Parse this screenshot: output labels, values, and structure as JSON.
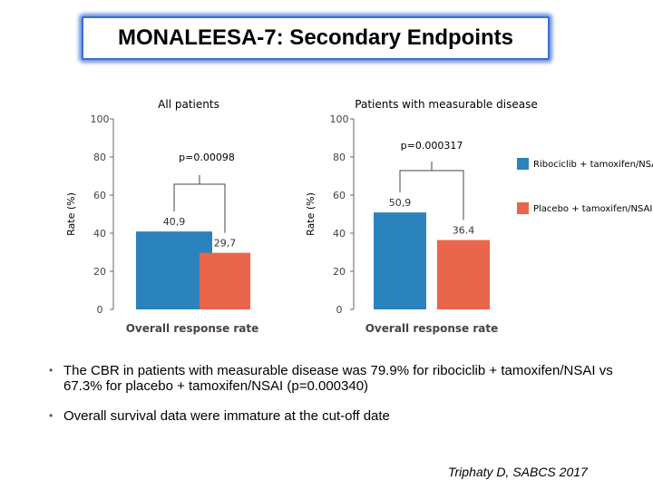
{
  "title": "MONALEESA-7: Secondary Endpoints",
  "chart_data": {
    "type": "bar",
    "yaxis_label": "Rate (%)",
    "ylim": [
      0,
      100
    ],
    "yticks": [
      0,
      20,
      40,
      60,
      80,
      100
    ],
    "grid": false,
    "legend_position": "right",
    "series_colors": [
      "#2b83bd",
      "#e9654b"
    ],
    "legend": [
      {
        "label": "Ribociclib + tamoxifen/NSAI",
        "color": "#2b83bd"
      },
      {
        "label": "Placebo + tamoxifen/NSAI",
        "color": "#e9654b"
      }
    ],
    "panels": [
      {
        "title": "All patients",
        "xlabel": "Overall response rate",
        "p_value": "p=0.00098",
        "values": [
          40.9,
          29.7
        ],
        "value_labels": [
          "40,9",
          "29,7"
        ]
      },
      {
        "title": "Patients with measurable disease",
        "xlabel": "Overall response rate",
        "p_value": "p=0.000317",
        "values": [
          50.9,
          36.4
        ],
        "value_labels": [
          "50,9",
          "36.4"
        ]
      }
    ]
  },
  "bullets": [
    "The CBR in patients with measurable disease was 79.9% for ribociclib + tamoxifen/NSAI vs 67.3% for placebo + tamoxifen/NSAI (p=0.000340)",
    "Overall survival data were immature at the cut-off date"
  ],
  "bullet_glyph": "•",
  "citation": "Triphaty D, SABCS 2017"
}
